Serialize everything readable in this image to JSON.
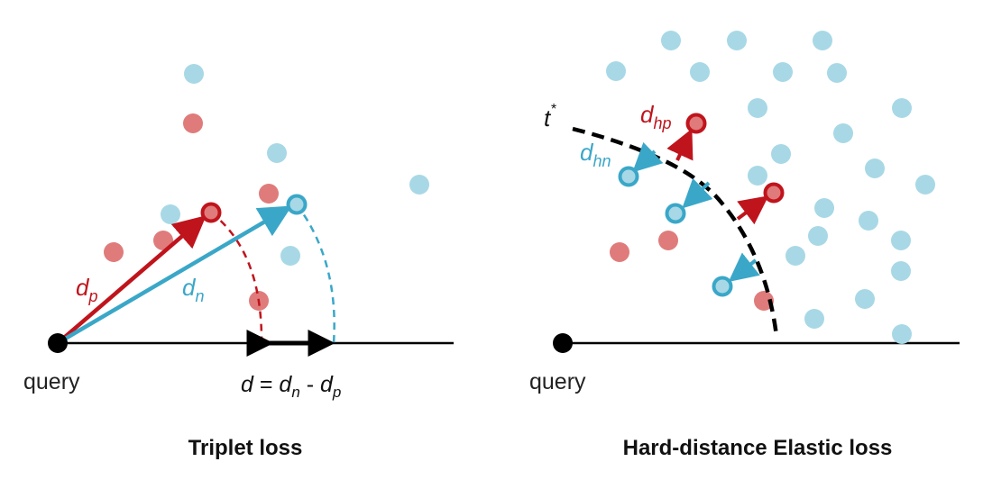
{
  "colors": {
    "positive_fill": "#e07b7b",
    "negative_fill": "#a8d8e6",
    "positive_strong": "#c0141c",
    "negative_strong": "#3aa7c8",
    "ink": "#000000"
  },
  "left_panel": {
    "caption": "Triplet loss",
    "query_label": "query",
    "dp_label": {
      "base": "d",
      "sub": "p"
    },
    "dn_label": {
      "base": "d",
      "sub": "n"
    },
    "margin_formula": {
      "lhs": "d",
      "eq": " = ",
      "a": "d",
      "a_sub": "n",
      "minus": " - ",
      "b": "d",
      "b_sub": "p"
    }
  },
  "right_panel": {
    "caption": "Hard-distance Elastic loss",
    "query_label": "query",
    "threshold_label": {
      "base": "t",
      "sup": "*"
    },
    "dhp_label": {
      "base": "d",
      "sub": "hp"
    },
    "dhn_label": {
      "base": "d",
      "sub": "hn"
    }
  }
}
